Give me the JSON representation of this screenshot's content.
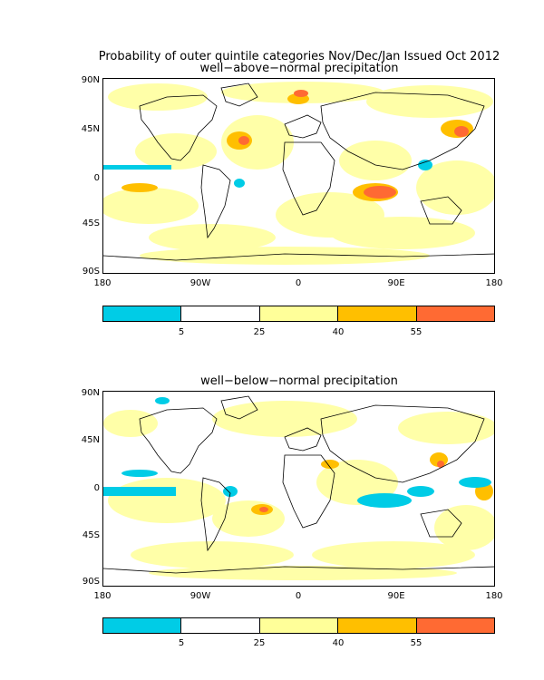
{
  "title": "Probability of outer quintile categories Nov/Dec/Jan Issued Oct 2012",
  "panels": [
    {
      "subtitle": "well−above−normal precipitation"
    },
    {
      "subtitle": "well−below−normal precipitation"
    }
  ],
  "lat_labels": [
    "90N",
    "45N",
    "0",
    "45S",
    "90S"
  ],
  "lon_labels": [
    "180",
    "90W",
    "0",
    "90E",
    "180"
  ],
  "colorbar": {
    "colors": [
      "#00cce6",
      "#ffffff",
      "#ffff99",
      "#ffbf00",
      "#ff6a33"
    ],
    "labels": [
      "5",
      "25",
      "40",
      "55"
    ]
  }
}
